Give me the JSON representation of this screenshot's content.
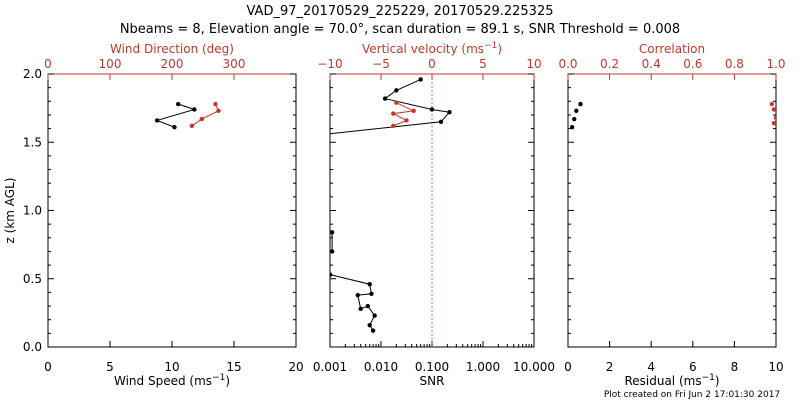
{
  "title": {
    "line1": "VAD_97_20170529_225229, 20170529.225325",
    "line2": "Nbeams = 8, Elevation angle = 70.0°, scan duration = 89.1 s, SNR Threshold = 0.008"
  },
  "footer": "Plot created on Fri Jun  2 17:01:30 2017",
  "colors": {
    "primary": "#000000",
    "secondary": "#c0392b",
    "guide": "#e03030"
  },
  "chart_data": [
    {
      "type": "line",
      "panel": "wind",
      "ylabel": "z (km AGL)",
      "ylim": [
        0,
        2.0
      ],
      "yticks": [
        "0.0",
        "0.5",
        "1.0",
        "1.5",
        "2.0"
      ],
      "x_bottom": {
        "label_base": "Wind Speed (ms",
        "label_sup": "−1",
        "label_tail": ")",
        "lim": [
          0,
          20
        ],
        "ticks": [
          "0",
          "5",
          "10",
          "15",
          "20"
        ]
      },
      "x_top": {
        "label": "Wind Direction (deg)",
        "lim": [
          0,
          400
        ],
        "ticks": [
          "0",
          "100",
          "200",
          "300"
        ]
      },
      "series": [
        {
          "axis": "bottom",
          "color": "#000000",
          "points": [
            [
              10.5,
              1.78
            ],
            [
              11.8,
              1.74
            ],
            [
              8.8,
              1.66
            ],
            [
              10.2,
              1.61
            ]
          ]
        },
        {
          "axis": "top",
          "color": "#c0392b",
          "points": [
            [
              270,
              1.78
            ],
            [
              275,
              1.73
            ],
            [
              248,
              1.67
            ],
            [
              232,
              1.62
            ]
          ]
        }
      ]
    },
    {
      "type": "line",
      "panel": "snr",
      "ylim": [
        0,
        2.0
      ],
      "x_bottom": {
        "label": "SNR",
        "scale": "log",
        "lim": [
          0.001,
          10
        ],
        "ticks": [
          "0.001",
          "0.010",
          "0.100",
          "1.000",
          "10.000"
        ]
      },
      "x_top": {
        "label_base": "Vertical velocity (ms",
        "label_sup": "−1",
        "label_tail": ")",
        "lim": [
          -10,
          10
        ],
        "ticks": [
          "−10",
          "−5",
          "0",
          "5",
          "10"
        ]
      },
      "guide_line_at_vertical_velocity": 0,
      "series": [
        {
          "axis": "bottom",
          "color": "#000000",
          "points": [
            [
              0.06,
              1.96
            ],
            [
              0.02,
              1.88
            ],
            [
              0.012,
              1.82
            ],
            [
              0.1,
              1.74
            ],
            [
              0.22,
              1.72
            ],
            [
              0.15,
              1.65
            ],
            [
              0.0005,
              1.55
            ],
            [
              0.0009,
              0.85
            ],
            [
              0.0011,
              0.84
            ],
            [
              0.0011,
              0.7
            ],
            [
              0.0009,
              0.7
            ],
            [
              0.001,
              0.53
            ],
            [
              0.006,
              0.46
            ],
            [
              0.0065,
              0.39
            ],
            [
              0.0035,
              0.38
            ],
            [
              0.004,
              0.28
            ],
            [
              0.0055,
              0.3
            ],
            [
              0.0075,
              0.23
            ],
            [
              0.006,
              0.16
            ],
            [
              0.007,
              0.12
            ]
          ]
        },
        {
          "axis": "top",
          "color": "#c0392b",
          "points": [
            [
              -3.5,
              1.79
            ],
            [
              -1.8,
              1.73
            ],
            [
              -3.8,
              1.71
            ],
            [
              -2.5,
              1.66
            ],
            [
              -3.8,
              1.62
            ]
          ]
        }
      ]
    },
    {
      "type": "scatter",
      "panel": "residual",
      "ylim": [
        0,
        2.0
      ],
      "x_bottom": {
        "label_base": "Residual (ms",
        "label_sup": "−1",
        "label_tail": ")",
        "lim": [
          0,
          10
        ],
        "ticks": [
          "0",
          "2",
          "4",
          "6",
          "8",
          "10"
        ]
      },
      "x_top": {
        "label": "Correlation",
        "lim": [
          0,
          1.0
        ],
        "ticks": [
          "0.0",
          "0.2",
          "0.4",
          "0.6",
          "0.8",
          "1.0"
        ]
      },
      "series": [
        {
          "axis": "bottom",
          "color": "#000000",
          "points": [
            [
              0.6,
              1.78
            ],
            [
              0.4,
              1.73
            ],
            [
              0.3,
              1.67
            ],
            [
              0.2,
              1.61
            ]
          ]
        },
        {
          "axis": "top",
          "color": "#c0392b",
          "points": [
            [
              0.98,
              1.78
            ],
            [
              0.99,
              1.74
            ],
            [
              1.0,
              1.68
            ],
            [
              0.99,
              1.64
            ]
          ]
        }
      ]
    }
  ]
}
